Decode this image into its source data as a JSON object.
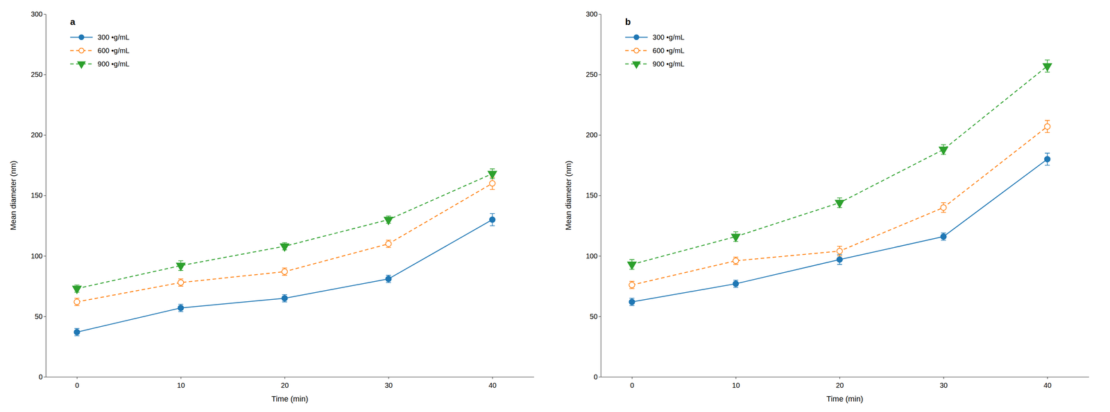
{
  "chart_data": [
    {
      "type": "line",
      "title": "a",
      "x": [
        0,
        10,
        20,
        30,
        40
      ],
      "xlim": [
        -3,
        44
      ],
      "xticks": [
        0,
        10,
        20,
        30,
        40
      ],
      "ylim": [
        0,
        300
      ],
      "yticks": [
        0,
        50,
        100,
        150,
        200,
        250,
        300
      ],
      "xlabel": "Time (min)",
      "ylabel": "Mean diameter (nm)",
      "legend": "upper left",
      "grid": false,
      "series": [
        {
          "name": "300 •g/mL",
          "marker": "circle",
          "line_style": "solid",
          "values": [
            37,
            57,
            65,
            81,
            130
          ],
          "errors": [
            3,
            3,
            3,
            3,
            5
          ]
        },
        {
          "name": "600 •g/mL",
          "marker": "open-circle",
          "line_style": "dashed",
          "values": [
            62,
            78,
            87,
            110,
            160
          ],
          "errors": [
            3,
            3,
            3,
            3,
            5
          ]
        },
        {
          "name": "900 •g/mL",
          "marker": "triangle-down",
          "line_style": "dashed",
          "values": [
            73,
            92,
            108,
            130,
            168
          ],
          "errors": [
            3,
            4,
            3,
            3,
            4
          ]
        }
      ]
    },
    {
      "type": "line",
      "title": "b",
      "x": [
        0,
        10,
        20,
        30,
        40
      ],
      "xlim": [
        -3,
        44
      ],
      "xticks": [
        0,
        10,
        20,
        30,
        40
      ],
      "ylim": [
        0,
        300
      ],
      "yticks": [
        0,
        50,
        100,
        150,
        200,
        250,
        300
      ],
      "xlabel": "Time (min)",
      "ylabel": "Mean diameter (nm)",
      "legend": "upper left",
      "grid": false,
      "series": [
        {
          "name": "300 •g/mL",
          "marker": "circle",
          "line_style": "solid",
          "values": [
            62,
            77,
            97,
            116,
            180
          ],
          "errors": [
            3,
            3,
            4,
            3,
            5
          ]
        },
        {
          "name": "600 •g/mL",
          "marker": "open-circle",
          "line_style": "dashed",
          "values": [
            76,
            96,
            104,
            140,
            207
          ],
          "errors": [
            3,
            3,
            4,
            4,
            5
          ]
        },
        {
          "name": "900 •g/mL",
          "marker": "triangle-down",
          "line_style": "dashed",
          "values": [
            93,
            116,
            144,
            188,
            257
          ],
          "errors": [
            4,
            4,
            4,
            4,
            5
          ]
        }
      ]
    }
  ]
}
